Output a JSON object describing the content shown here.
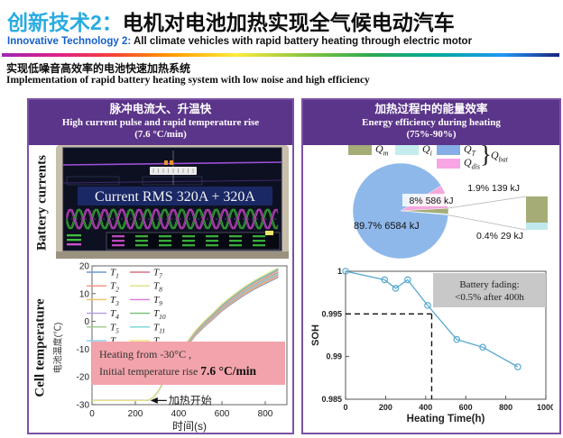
{
  "colors": {
    "title_accent": "#29ABE2",
    "subtitle_accent": "#1560C8",
    "panel_border": "#7C52A5",
    "panel_header_bg": "#5B3589"
  },
  "header": {
    "title_zh_label": "创新技术2：",
    "title_zh_main": "电机对电池加热实现全气候电动汽车",
    "title_en_label": "Innovative Technology 2:",
    "title_en_main": " All climate vehicles with rapid battery heating through electric motor"
  },
  "section": {
    "zh": "实现低噪音高效率的电池快速加热系统",
    "en": "Implementation of rapid battery heating system with low noise and high efficiency"
  },
  "left_panel": {
    "header_zh": "脉冲电流大、升温快",
    "header_en": "High current pulse and rapid temperature rise",
    "header_rate": "(7.6 °C/min)",
    "scope_side_label": "Battery currents",
    "scope_banner": "Current RMS 320A + 320A",
    "temp_side_label_en": "Cell temperature",
    "temp_side_label_zh": "电池温度(℃)"
  },
  "right_panel": {
    "header_zh": "加热过程中的能量效率",
    "header_en": "Energy efficiency during heating",
    "header_range": "(75%-90%)"
  },
  "chart_data": [
    {
      "id": "energy_pie",
      "type": "pie",
      "title": "Energy efficiency during heating (75%-90%)",
      "slices": [
        {
          "name": "Q_T",
          "pct": 89.7,
          "label": "89.7% 6584 kJ",
          "color": "#8FB8EA"
        },
        {
          "name": "Q_dis",
          "pct": 8.0,
          "label": "8% 586 kJ",
          "color": "#F5A8DC"
        },
        {
          "name": "Q_m",
          "pct": 1.9,
          "label": "1.9% 139 kJ",
          "color": "#A5AC76"
        },
        {
          "name": "Q_i",
          "pct": 0.4,
          "label": "0.4% 29 kJ",
          "color": "#BFE8EC"
        }
      ],
      "legend": [
        {
          "base": "Q",
          "sub": "m",
          "color": "#A5AC76"
        },
        {
          "base": "Q",
          "sub": "i",
          "color": "#C5ECEC"
        },
        {
          "base": "Q",
          "sub": "T",
          "color": "#86AEE6"
        },
        {
          "base": "Q",
          "sub": "dis",
          "color": "#F7A6E3"
        }
      ],
      "brace": "}",
      "brace_label": {
        "base": "Q",
        "sub": "bat"
      },
      "legend_position": "top"
    },
    {
      "id": "soh_fade",
      "type": "line",
      "x": [
        0,
        195,
        250,
        310,
        410,
        555,
        685,
        860
      ],
      "y": [
        1.0,
        0.999,
        0.998,
        0.999,
        0.996,
        0.992,
        0.9911,
        0.9888
      ],
      "xlabel": "Heating Time(h)",
      "ylabel": "SOH",
      "xlim": [
        0,
        1000
      ],
      "ylim": [
        0.985,
        1.0
      ],
      "xticks": [
        0,
        200,
        400,
        600,
        800,
        1000
      ],
      "yticks": [
        0.985,
        0.99,
        0.995,
        1
      ],
      "ytick_labels": [
        "0.985",
        "0.99",
        "0.995",
        "1"
      ],
      "dash_x": 430,
      "dash_y": 0.995,
      "annotation_lines": [
        "Battery fading:",
        "<0.5% after 400h"
      ],
      "line_color": "#56A8D0",
      "grid": false
    },
    {
      "id": "cell_temperature",
      "type": "line",
      "xlabel": "时间(s)",
      "ylabel": "Cell temperature 电池温度(℃)",
      "xlim": [
        0,
        900
      ],
      "ylim": [
        -30,
        20
      ],
      "xticks": [
        0,
        200,
        400,
        600,
        800
      ],
      "yticks": [
        -30,
        -20,
        -10,
        0,
        10,
        20
      ],
      "base_x": [
        0,
        60,
        120,
        180,
        240,
        265,
        285,
        305,
        330,
        360,
        400,
        440,
        480,
        520,
        560,
        600,
        650,
        700,
        750,
        800,
        860
      ],
      "base_y": [
        -28.5,
        -28.5,
        -28.5,
        -28.5,
        -28.5,
        -28.3,
        -27.2,
        -25.2,
        -21.8,
        -18,
        -12.5,
        -8,
        -4,
        -0.8,
        2,
        5,
        8,
        10.8,
        13.2,
        15.2,
        17.6
      ],
      "series_spread": 0.32,
      "series": [
        {
          "base": "T",
          "sub": "1",
          "color": "#6C9BD2"
        },
        {
          "base": "T",
          "sub": "2",
          "color": "#F0907E"
        },
        {
          "base": "T",
          "sub": "3",
          "color": "#EFC366"
        },
        {
          "base": "T",
          "sub": "4",
          "color": "#B49BD9"
        },
        {
          "base": "T",
          "sub": "5",
          "color": "#9DCB8B"
        },
        {
          "base": "T",
          "sub": "6",
          "color": "#8ED1EF"
        },
        {
          "base": "T",
          "sub": "7",
          "color": "#D4737F"
        },
        {
          "base": "T",
          "sub": "8",
          "color": "#DFE07E"
        },
        {
          "base": "T",
          "sub": "9",
          "color": "#DC78DC"
        },
        {
          "base": "T",
          "sub": "10",
          "color": "#77BE77"
        },
        {
          "base": "T",
          "sub": "11",
          "color": "#6FD6D6"
        },
        {
          "base": "T",
          "sub": "12",
          "color": "#F2E27E"
        }
      ],
      "annotation_box": {
        "line1": "Heating from -30°C ,",
        "line2": "Initial temperature rise ",
        "line2_bold": "7.6 °C/min"
      },
      "start_label": "加热开始",
      "legend_position": "upper-left"
    }
  ]
}
